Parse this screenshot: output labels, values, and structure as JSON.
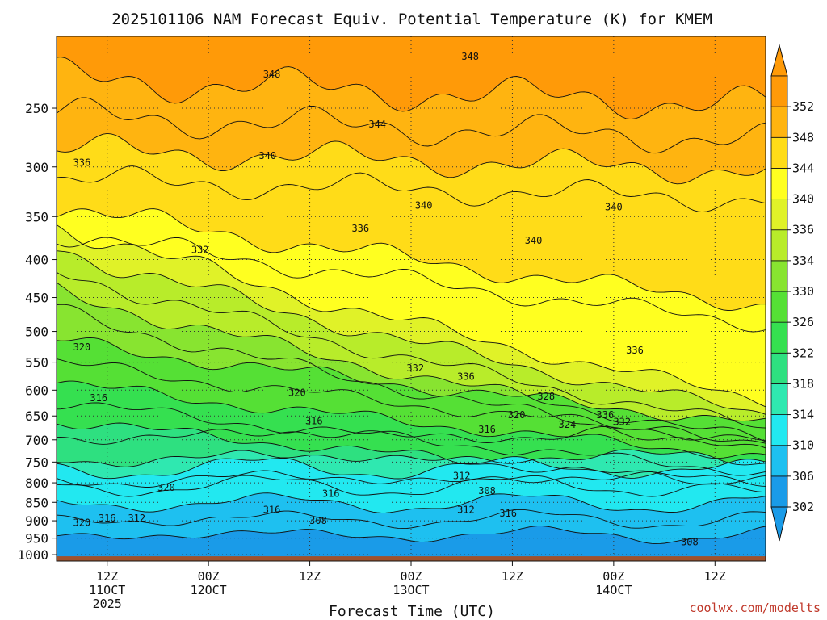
{
  "chart_data": {
    "type": "heatmap",
    "title": "2025101106 NAM Forecast Equiv. Potential Temperature (K) for KMEM",
    "xlabel": "Forecast Time (UTC)",
    "ylabel": "",
    "y_scale": "log",
    "y_inverted": true,
    "ylim": [
      1020,
      200
    ],
    "y_ticks": [
      250,
      300,
      350,
      400,
      450,
      500,
      550,
      600,
      650,
      700,
      750,
      800,
      850,
      900,
      950,
      1000
    ],
    "x_ticks": [
      {
        "hour": 6,
        "lines": [
          "12Z",
          "11OCT",
          "2025"
        ]
      },
      {
        "hour": 18,
        "lines": [
          "00Z",
          "12OCT"
        ]
      },
      {
        "hour": 30,
        "lines": [
          "12Z"
        ]
      },
      {
        "hour": 42,
        "lines": [
          "00Z",
          "13OCT"
        ]
      },
      {
        "hour": 54,
        "lines": [
          "12Z"
        ]
      },
      {
        "hour": 66,
        "lines": [
          "00Z",
          "14OCT"
        ]
      },
      {
        "hour": 78,
        "lines": [
          "12Z"
        ]
      }
    ],
    "xlim": [
      0,
      84
    ],
    "grid": true,
    "colorbar": {
      "levels": [
        302,
        306,
        310,
        314,
        318,
        322,
        326,
        330,
        334,
        336,
        340,
        344,
        348,
        352
      ],
      "colors": [
        "#1a9be8",
        "#1ec0f0",
        "#22e8f0",
        "#2fe8b0",
        "#2ee080",
        "#35e050",
        "#55e035",
        "#88e430",
        "#b8ec2a",
        "#e0f228",
        "#ffff20",
        "#ffdc18",
        "#ffb410",
        "#ff9a08"
      ],
      "extend": "both"
    },
    "ground_color": "#a0522d",
    "contour_labels": [
      {
        "hour": 25.5,
        "p": 225,
        "text": "348"
      },
      {
        "hour": 49,
        "p": 213,
        "text": "348"
      },
      {
        "hour": 38,
        "p": 263,
        "text": "344"
      },
      {
        "hour": 25,
        "p": 290,
        "text": "340"
      },
      {
        "hour": 3,
        "p": 296,
        "text": "336"
      },
      {
        "hour": 36,
        "p": 363,
        "text": "336"
      },
      {
        "hour": 17,
        "p": 388,
        "text": "332"
      },
      {
        "hour": 43.5,
        "p": 338,
        "text": "340"
      },
      {
        "hour": 56.5,
        "p": 377,
        "text": "340"
      },
      {
        "hour": 66,
        "p": 340,
        "text": "340"
      },
      {
        "hour": 68.5,
        "p": 530,
        "text": "336"
      },
      {
        "hour": 3,
        "p": 525,
        "text": "320"
      },
      {
        "hour": 5,
        "p": 615,
        "text": "316"
      },
      {
        "hour": 28.5,
        "p": 605,
        "text": "320"
      },
      {
        "hour": 30.5,
        "p": 660,
        "text": "316"
      },
      {
        "hour": 42.5,
        "p": 560,
        "text": "332"
      },
      {
        "hour": 48.5,
        "p": 575,
        "text": "336"
      },
      {
        "hour": 58,
        "p": 612,
        "text": "328"
      },
      {
        "hour": 54.5,
        "p": 648,
        "text": "320"
      },
      {
        "hour": 51,
        "p": 678,
        "text": "316"
      },
      {
        "hour": 60.5,
        "p": 668,
        "text": "324"
      },
      {
        "hour": 65,
        "p": 648,
        "text": "336"
      },
      {
        "hour": 67,
        "p": 662,
        "text": "332"
      },
      {
        "hour": 13,
        "p": 812,
        "text": "320"
      },
      {
        "hour": 32.5,
        "p": 827,
        "text": "316"
      },
      {
        "hour": 25.5,
        "p": 870,
        "text": "316"
      },
      {
        "hour": 3,
        "p": 905,
        "text": "320"
      },
      {
        "hour": 6,
        "p": 893,
        "text": "316"
      },
      {
        "hour": 9.5,
        "p": 893,
        "text": "312"
      },
      {
        "hour": 31,
        "p": 900,
        "text": "308"
      },
      {
        "hour": 48,
        "p": 783,
        "text": "312"
      },
      {
        "hour": 51,
        "p": 820,
        "text": "308"
      },
      {
        "hour": 48.5,
        "p": 870,
        "text": "312"
      },
      {
        "hour": 53.5,
        "p": 880,
        "text": "316"
      },
      {
        "hour": 75,
        "p": 962,
        "text": "308"
      }
    ]
  },
  "credit": "coolwx.com/modelts"
}
